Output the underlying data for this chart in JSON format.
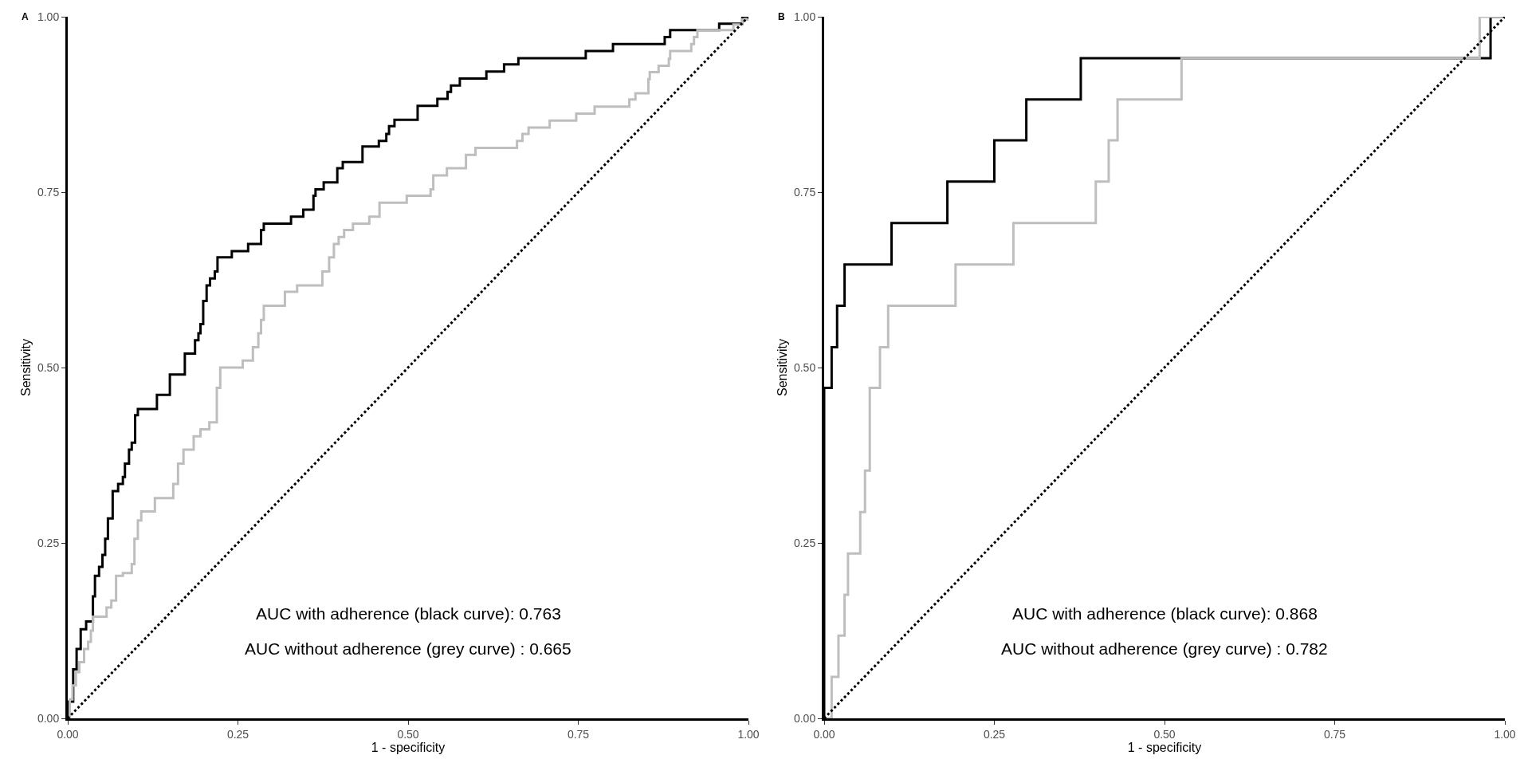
{
  "chart_data": [
    {
      "type": "step",
      "title": "A",
      "xlabel": "1 - specificity",
      "ylabel": "Sensitivity",
      "xlim": [
        0,
        1
      ],
      "ylim": [
        0,
        1
      ],
      "xticks": [
        {
          "value": 0,
          "label": "0.00"
        },
        {
          "value": 0.25,
          "label": "0.25"
        },
        {
          "value": 0.5,
          "label": "0.50"
        },
        {
          "value": 0.75,
          "label": "0.75"
        },
        {
          "value": 1,
          "label": "1.00"
        }
      ],
      "yticks": [
        {
          "value": 0,
          "label": "0.00"
        },
        {
          "value": 0.25,
          "label": "0.25"
        },
        {
          "value": 0.5,
          "label": "0.50"
        },
        {
          "value": 0.75,
          "label": "0.75"
        },
        {
          "value": 1,
          "label": "1.00"
        }
      ],
      "annotations": [
        "AUC with adherence (black curve): 0.763",
        "AUC without adherence (grey curve) : 0.665"
      ],
      "series": [
        {
          "color": "#000000",
          "x": [
            0,
            0.001,
            0.008,
            0.013,
            0.019,
            0.027,
            0.037,
            0.04,
            0.046,
            0.051,
            0.055,
            0.059,
            0.066,
            0.074,
            0.081,
            0.084,
            0.09,
            0.094,
            0.099,
            0.103,
            0.131,
            0.15,
            0.172,
            0.187,
            0.192,
            0.195,
            0.199,
            0.204,
            0.209,
            0.216,
            0.22,
            0.241,
            0.265,
            0.284,
            0.288,
            0.328,
            0.346,
            0.361,
            0.364,
            0.376,
            0.396,
            0.404,
            0.433,
            0.457,
            0.468,
            0.472,
            0.48,
            0.514,
            0.543,
            0.558,
            0.563,
            0.576,
            0.615,
            0.641,
            0.662,
            0.761,
            0.801,
            0.877,
            0.885,
            0.957,
            0.991,
            1
          ],
          "values": [
            0,
            0.024,
            0.07,
            0.099,
            0.127,
            0.138,
            0.174,
            0.203,
            0.216,
            0.233,
            0.256,
            0.285,
            0.324,
            0.334,
            0.344,
            0.363,
            0.383,
            0.393,
            0.432,
            0.441,
            0.461,
            0.49,
            0.52,
            0.539,
            0.549,
            0.562,
            0.595,
            0.617,
            0.627,
            0.637,
            0.657,
            0.666,
            0.676,
            0.696,
            0.705,
            0.715,
            0.725,
            0.745,
            0.754,
            0.764,
            0.784,
            0.793,
            0.815,
            0.823,
            0.833,
            0.844,
            0.853,
            0.873,
            0.883,
            0.893,
            0.902,
            0.912,
            0.922,
            0.932,
            0.941,
            0.951,
            0.961,
            0.971,
            0.981,
            0.99,
            1,
            1
          ]
        },
        {
          "color": "#bebebe",
          "x": [
            0,
            0.003,
            0.007,
            0.012,
            0.017,
            0.024,
            0.03,
            0.034,
            0.037,
            0.057,
            0.064,
            0.071,
            0.081,
            0.094,
            0.098,
            0.103,
            0.108,
            0.128,
            0.155,
            0.162,
            0.17,
            0.185,
            0.195,
            0.208,
            0.219,
            0.224,
            0.257,
            0.272,
            0.28,
            0.284,
            0.288,
            0.319,
            0.337,
            0.374,
            0.384,
            0.391,
            0.398,
            0.406,
            0.419,
            0.443,
            0.458,
            0.498,
            0.533,
            0.537,
            0.557,
            0.585,
            0.599,
            0.66,
            0.668,
            0.677,
            0.708,
            0.747,
            0.774,
            0.825,
            0.834,
            0.853,
            0.855,
            0.868,
            0.883,
            0.885,
            0.916,
            0.92,
            0.925,
            0.978,
            0.991,
            1
          ],
          "values": [
            0,
            0.027,
            0.047,
            0.066,
            0.08,
            0.099,
            0.109,
            0.125,
            0.145,
            0.158,
            0.168,
            0.203,
            0.207,
            0.22,
            0.256,
            0.282,
            0.295,
            0.314,
            0.334,
            0.363,
            0.383,
            0.402,
            0.412,
            0.422,
            0.471,
            0.5,
            0.51,
            0.529,
            0.549,
            0.568,
            0.588,
            0.608,
            0.617,
            0.637,
            0.657,
            0.676,
            0.686,
            0.696,
            0.705,
            0.715,
            0.735,
            0.745,
            0.754,
            0.774,
            0.784,
            0.803,
            0.813,
            0.823,
            0.833,
            0.842,
            0.852,
            0.862,
            0.872,
            0.882,
            0.891,
            0.911,
            0.921,
            0.93,
            0.94,
            0.951,
            0.961,
            0.971,
            0.981,
            0.989,
            0.996,
            1
          ]
        },
        {
          "type": "line",
          "line_style": "dotted",
          "color": "#000000",
          "x": [
            0,
            1
          ],
          "values": [
            0,
            1
          ]
        }
      ]
    },
    {
      "type": "step",
      "title": "B",
      "xlabel": "1 - specificity",
      "ylabel": "Sensitivity",
      "xlim": [
        0,
        1
      ],
      "ylim": [
        0,
        1
      ],
      "xticks": [
        {
          "value": 0,
          "label": "0.00"
        },
        {
          "value": 0.25,
          "label": "0.25"
        },
        {
          "value": 0.5,
          "label": "0.50"
        },
        {
          "value": 0.75,
          "label": "0.75"
        },
        {
          "value": 1,
          "label": "1.00"
        }
      ],
      "yticks": [
        {
          "value": 0,
          "label": "0.00"
        },
        {
          "value": 0.25,
          "label": "0.25"
        },
        {
          "value": 0.5,
          "label": "0.50"
        },
        {
          "value": 0.75,
          "label": "0.75"
        },
        {
          "value": 1,
          "label": "1.00"
        }
      ],
      "annotations": [
        "AUC with adherence (black curve): 0.868",
        "AUC without adherence (grey curve) : 0.782"
      ],
      "series": [
        {
          "color": "#000000",
          "x": [
            0,
            0,
            0.011,
            0.019,
            0.03,
            0.099,
            0.181,
            0.25,
            0.297,
            0.377,
            0.979,
            1
          ],
          "values": [
            0,
            0.471,
            0.529,
            0.588,
            0.647,
            0.706,
            0.765,
            0.824,
            0.882,
            0.941,
            1,
            1
          ]
        },
        {
          "color": "#bebebe",
          "x": [
            0,
            0.011,
            0.021,
            0.03,
            0.035,
            0.053,
            0.06,
            0.067,
            0.067,
            0.082,
            0.094,
            0.193,
            0.278,
            0.399,
            0.418,
            0.431,
            0.525,
            0.963,
            1
          ],
          "values": [
            0,
            0.059,
            0.118,
            0.176,
            0.235,
            0.294,
            0.353,
            0.412,
            0.471,
            0.529,
            0.588,
            0.647,
            0.706,
            0.765,
            0.824,
            0.882,
            0.941,
            1,
            1
          ]
        },
        {
          "type": "line",
          "line_style": "dotted",
          "color": "#000000",
          "x": [
            0,
            1
          ],
          "values": [
            0,
            1
          ]
        }
      ]
    }
  ]
}
